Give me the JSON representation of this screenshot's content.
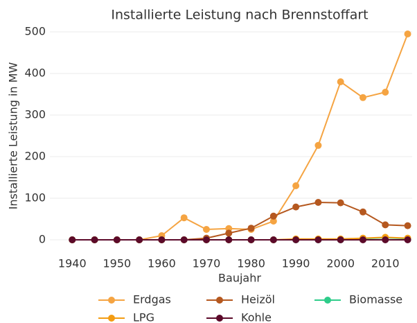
{
  "chart_data": {
    "type": "line",
    "title": "Installierte Leistung nach Brennstoffart",
    "xlabel": "Baujahr",
    "ylabel": "Installierte Leistung in MW",
    "x": [
      1940,
      1945,
      1950,
      1955,
      1960,
      1965,
      1970,
      1975,
      1980,
      1985,
      1990,
      1995,
      2000,
      2005,
      2010,
      2015
    ],
    "series": [
      {
        "name": "Erdgas",
        "color": "#f5a442",
        "values": [
          0,
          0,
          0,
          0,
          10,
          53,
          25,
          27,
          25,
          45,
          130,
          227,
          380,
          342,
          355,
          495
        ]
      },
      {
        "name": "Heizöl",
        "color": "#b5581f",
        "values": [
          0,
          0,
          0,
          0,
          0,
          0,
          4,
          16,
          28,
          57,
          79,
          90,
          89,
          67,
          36,
          34
        ]
      },
      {
        "name": "Biomasse",
        "color": "#2ecc8a",
        "values": [
          0,
          0,
          0,
          0,
          0,
          0,
          0,
          0,
          0,
          0,
          0,
          0,
          0,
          3,
          5,
          3
        ]
      },
      {
        "name": "LPG",
        "color": "#f39c12",
        "values": [
          0,
          0,
          0,
          0,
          0,
          0,
          0,
          0,
          0,
          0,
          2,
          2,
          2,
          4,
          6,
          4
        ]
      },
      {
        "name": "Kohle",
        "color": "#5c0a2a",
        "values": [
          0,
          0,
          0,
          0,
          0,
          0,
          0,
          0,
          0,
          0,
          0,
          0,
          0,
          0,
          0,
          0
        ]
      }
    ],
    "xlim": [
      1935,
      2016
    ],
    "ylim": [
      -25,
      525
    ],
    "xticks": [
      1940,
      1950,
      1960,
      1970,
      1980,
      1990,
      2000,
      2010
    ],
    "yticks": [
      0,
      100,
      200,
      300,
      400,
      500
    ],
    "grid": true,
    "legend": "bottom"
  }
}
